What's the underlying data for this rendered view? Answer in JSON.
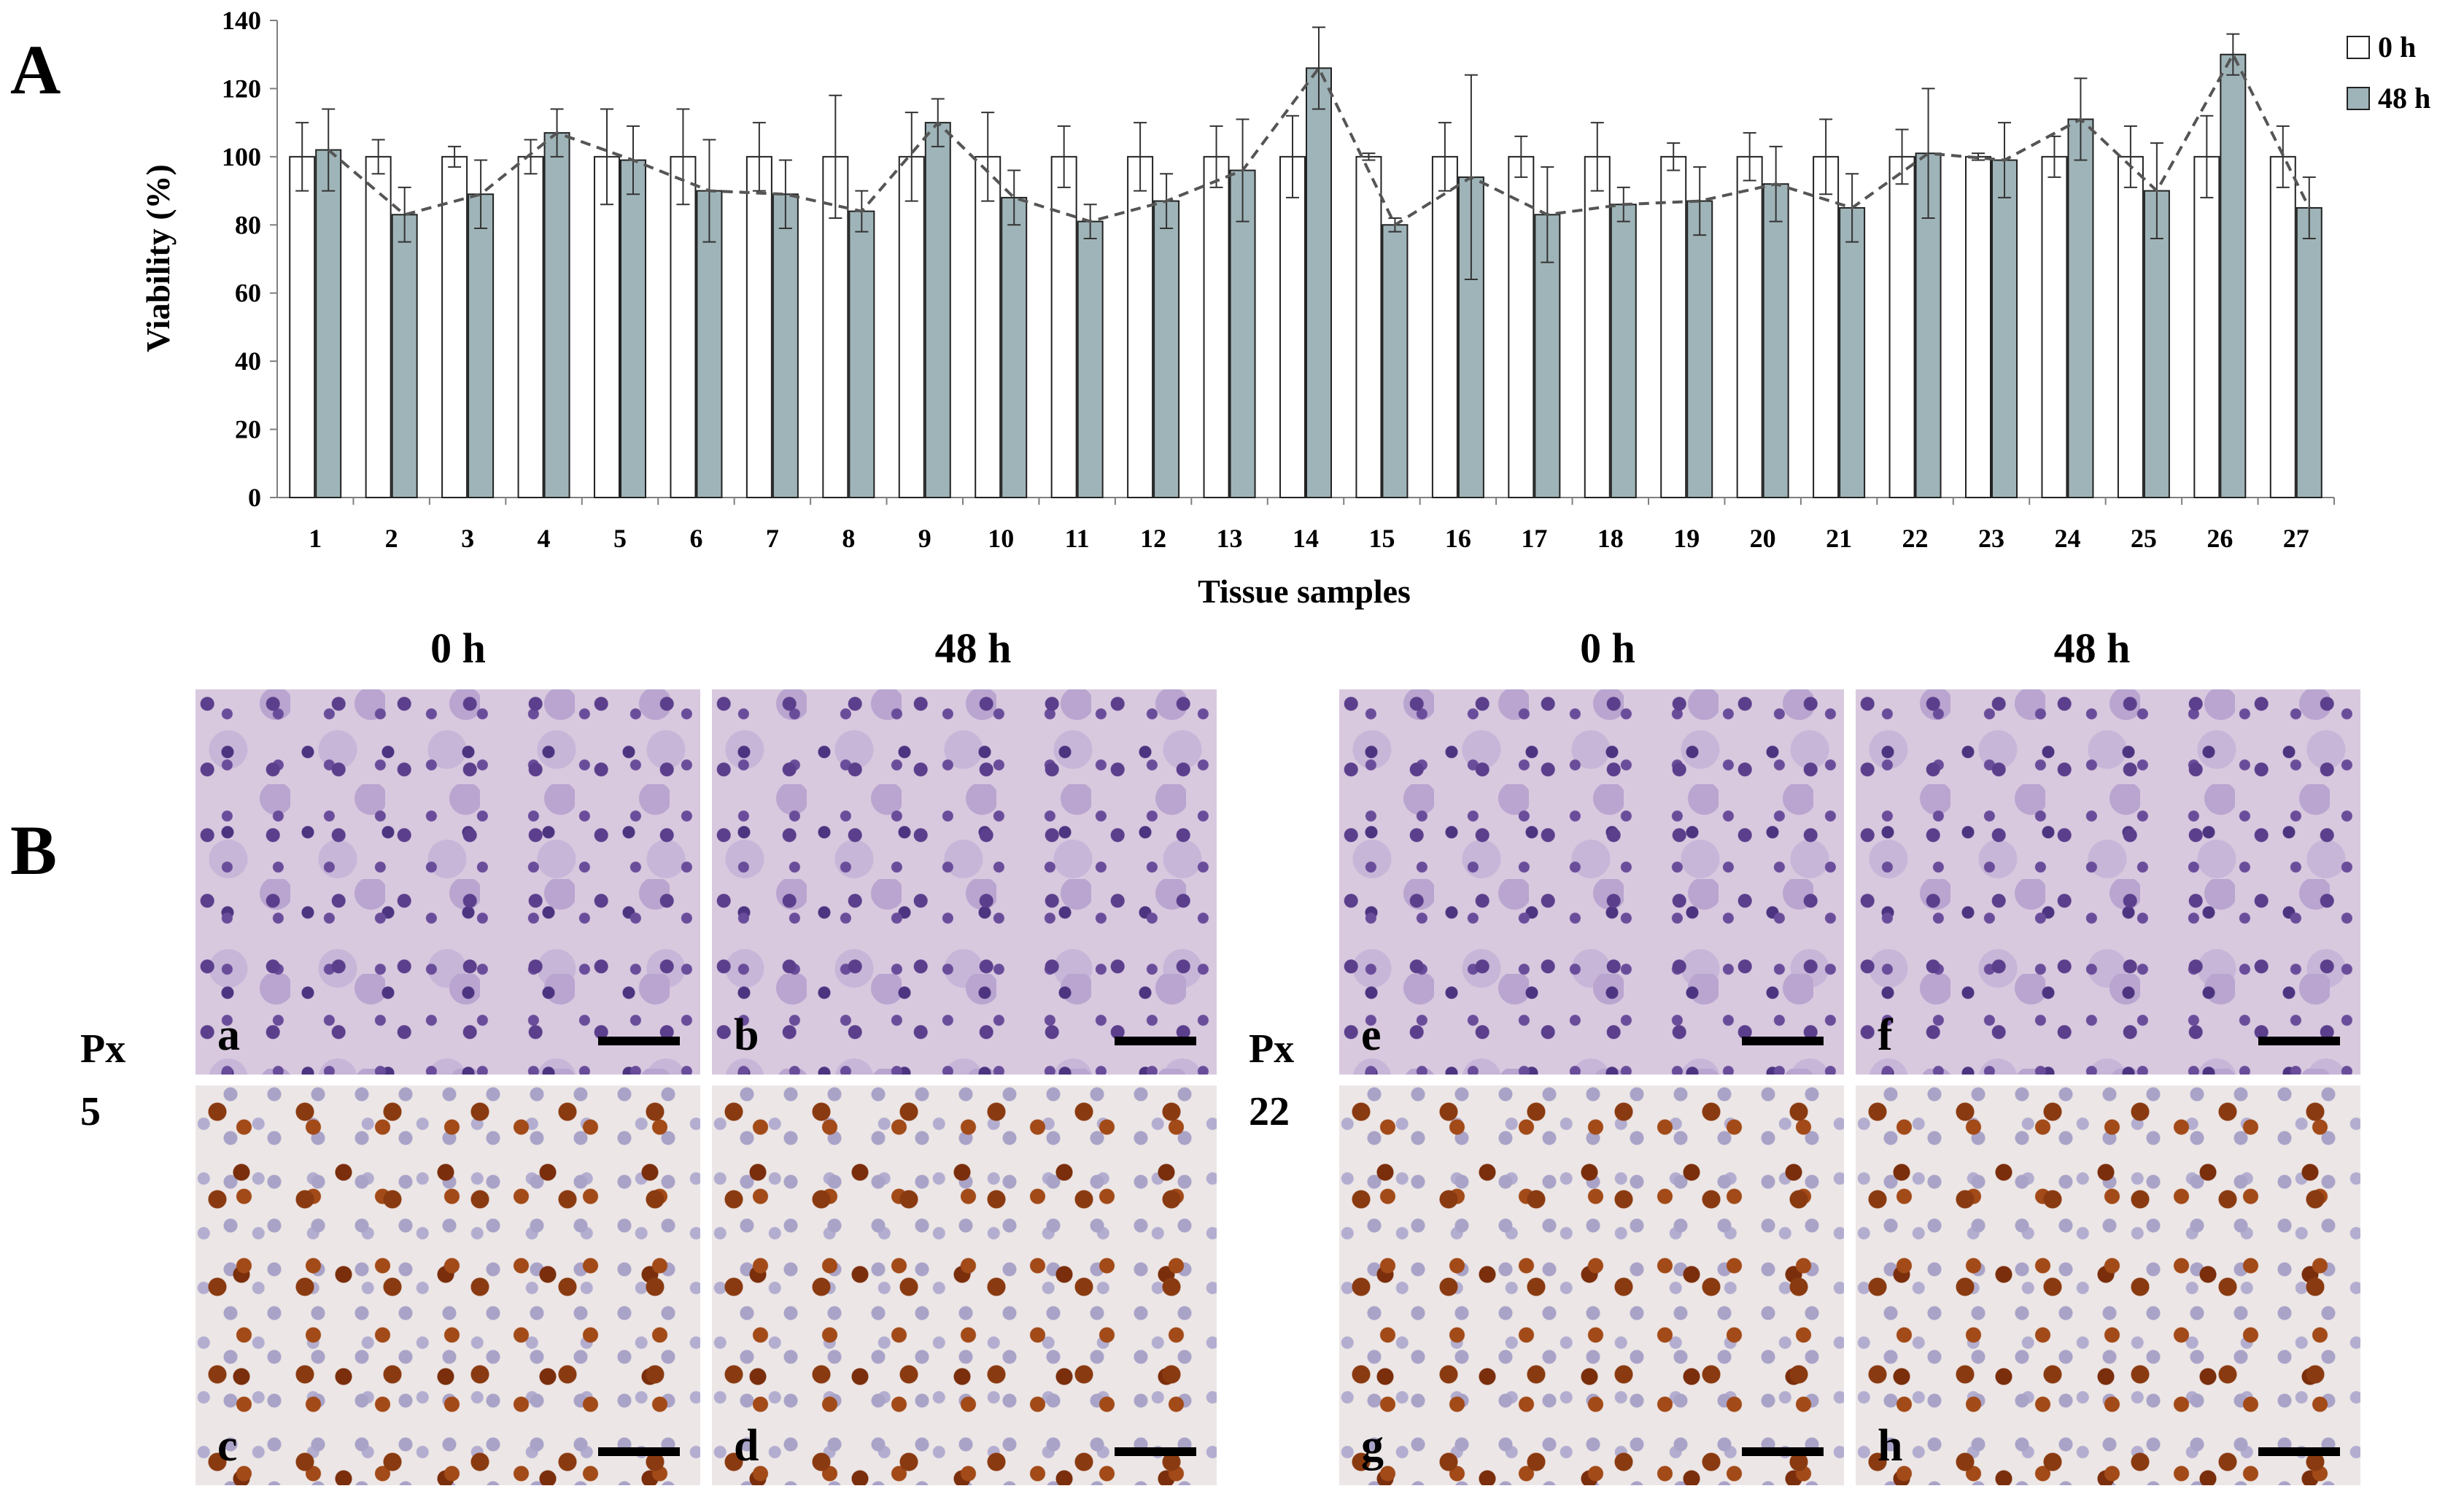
{
  "panels": {
    "A": "A",
    "B": "B"
  },
  "chart_data": {
    "type": "bar",
    "ylabel": "Viability (%)",
    "xlabel": "Tissue samples",
    "ylim": [
      0,
      140
    ],
    "yticks": [
      0,
      20,
      40,
      60,
      80,
      100,
      120,
      140
    ],
    "grid": false,
    "legend_position": "top-right",
    "categories": [
      "1",
      "2",
      "3",
      "4",
      "5",
      "6",
      "7",
      "8",
      "9",
      "10",
      "11",
      "12",
      "13",
      "14",
      "15",
      "16",
      "17",
      "18",
      "19",
      "20",
      "21",
      "22",
      "23",
      "24",
      "25",
      "26",
      "27"
    ],
    "series": [
      {
        "name": "0 h",
        "color": "#ffffff",
        "values": [
          100,
          100,
          100,
          100,
          100,
          100,
          100,
          100,
          100,
          100,
          100,
          100,
          100,
          100,
          100,
          100,
          100,
          100,
          100,
          100,
          100,
          100,
          100,
          100,
          100,
          100,
          100
        ],
        "errors": [
          10,
          5,
          3,
          5,
          14,
          14,
          10,
          18,
          13,
          13,
          9,
          10,
          9,
          12,
          1,
          10,
          6,
          10,
          4,
          7,
          11,
          8,
          1,
          6,
          9,
          12,
          9
        ]
      },
      {
        "name": "48 h",
        "color": "#9fb4b8",
        "values": [
          102,
          83,
          89,
          107,
          99,
          90,
          89,
          84,
          110,
          88,
          81,
          87,
          96,
          126,
          80,
          94,
          83,
          86,
          87,
          92,
          85,
          101,
          99,
          111,
          90,
          130,
          85
        ],
        "errors": [
          12,
          8,
          10,
          7,
          10,
          15,
          10,
          6,
          7,
          8,
          5,
          8,
          15,
          12,
          2,
          30,
          14,
          5,
          10,
          11,
          10,
          19,
          11,
          12,
          14,
          6,
          9
        ]
      }
    ],
    "trend_line": {
      "series": "48 h",
      "style": "dashed",
      "color": "#555555"
    }
  },
  "micrographs": {
    "col_headers": [
      "0 h",
      "48 h",
      "0 h",
      "48 h"
    ],
    "row_labels": [
      "Px\n5",
      "Px\n22"
    ],
    "subpanels": [
      {
        "letter": "a",
        "stain": "H&E"
      },
      {
        "letter": "b",
        "stain": "H&E"
      },
      {
        "letter": "c",
        "stain": "IHC"
      },
      {
        "letter": "d",
        "stain": "IHC"
      },
      {
        "letter": "e",
        "stain": "H&E"
      },
      {
        "letter": "f",
        "stain": "H&E"
      },
      {
        "letter": "g",
        "stain": "IHC"
      },
      {
        "letter": "h",
        "stain": "IHC"
      }
    ]
  }
}
